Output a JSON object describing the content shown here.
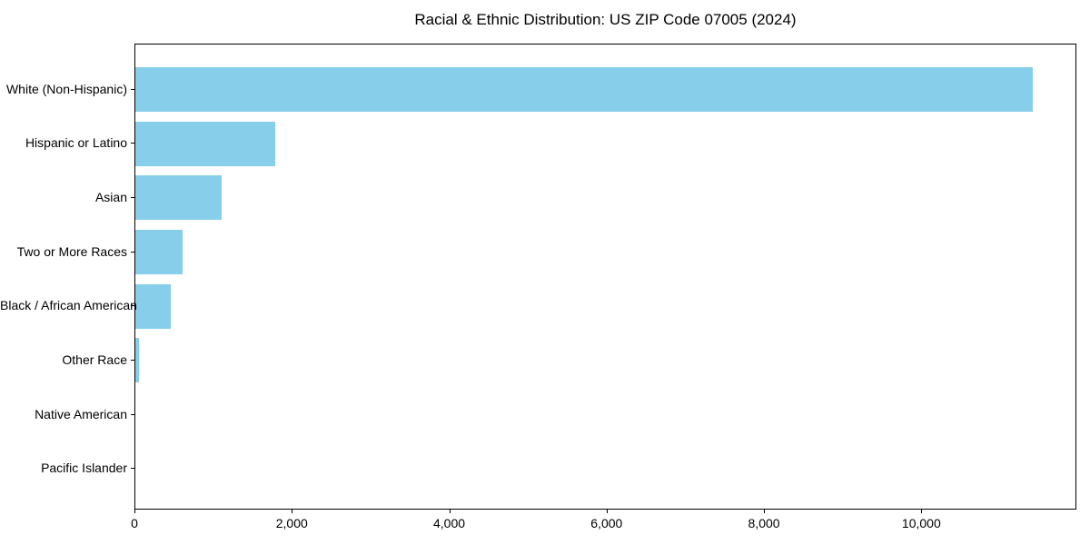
{
  "title": "Racial & Ethnic Distribution: US ZIP Code 07005 (2024)",
  "colors": {
    "bar": "#87CEEB",
    "axis": "#000000",
    "text": "#000000",
    "background": "#FFFFFF"
  },
  "chart_data": {
    "type": "bar",
    "orientation": "horizontal",
    "title": "Racial & Ethnic Distribution: US ZIP Code 07005 (2024)",
    "categories": [
      "White (Non-Hispanic)",
      "Hispanic or Latino",
      "Asian",
      "Two or More Races",
      "Black / African American",
      "Other Race",
      "Native American",
      "Pacific Islander"
    ],
    "values": [
      11400,
      1780,
      1100,
      600,
      450,
      45,
      0,
      0
    ],
    "xlabel": "",
    "ylabel": "",
    "xlim": [
      0,
      11970
    ],
    "x_ticks": [
      0,
      2000,
      4000,
      6000,
      8000,
      10000
    ],
    "x_tick_labels": [
      "0",
      "2,000",
      "4,000",
      "6,000",
      "8,000",
      "10,000"
    ],
    "bar_color": "#87CEEB",
    "grid": false,
    "legend": false
  }
}
